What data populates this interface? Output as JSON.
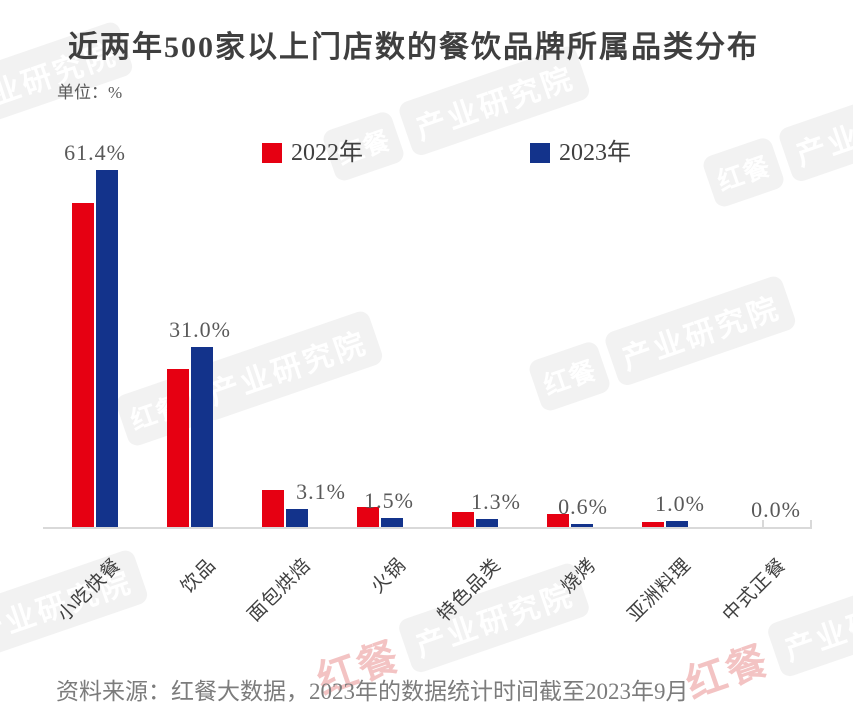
{
  "title": "近两年500家以上门店数的餐饮品牌所属品类分布",
  "unit_label": "单位：%",
  "legend": [
    {
      "label": "2022年",
      "color": "#e60012"
    },
    {
      "label": "2023年",
      "color": "#13338b"
    }
  ],
  "source_note": "资料来源：红餐大数据，2023年的数据统计时间截至2023年9月",
  "watermark": {
    "brand": "红餐",
    "org": "产业研究院"
  },
  "chart_data": {
    "type": "bar",
    "title": "近两年500家以上门店数的餐饮品牌所属品类分布",
    "ylabel": "%",
    "ylim": [
      0,
      65
    ],
    "grid": false,
    "legend_position": "top",
    "categories": [
      "小吃快餐",
      "饮品",
      "面包烘焙",
      "火锅",
      "特色品类",
      "烧烤",
      "亚洲料理",
      "中式正餐"
    ],
    "series": [
      {
        "name": "2022年",
        "color": "#e60012",
        "values": [
          55.7,
          27.2,
          6.4,
          3.5,
          2.5,
          2.2,
          0.8,
          0.0
        ]
      },
      {
        "name": "2023年",
        "color": "#13338b",
        "values": [
          61.4,
          31.0,
          3.1,
          1.5,
          1.3,
          0.6,
          1.0,
          0.0
        ]
      }
    ],
    "data_labels": [
      "61.4%",
      "31.0%",
      "3.1%",
      "1.5%",
      "1.3%",
      "0.6%",
      "1.0%",
      "0.0%"
    ],
    "data_labels_series": "2023年",
    "label_dx": [
      0,
      10,
      36,
      9,
      21,
      13,
      15,
      16
    ]
  }
}
